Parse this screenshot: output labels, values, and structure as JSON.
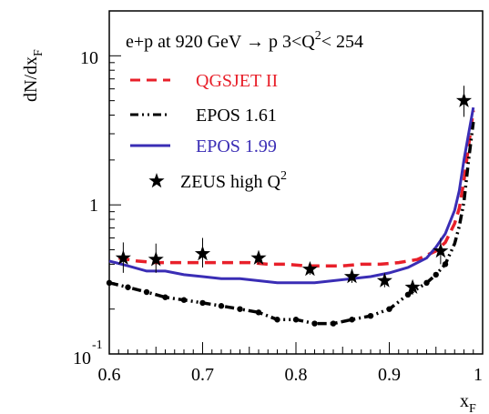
{
  "chart_data": {
    "type": "line",
    "title_main": "e+p at 920 GeV → p  3<Q",
    "title_sup1": "2",
    "title_end": "< 254",
    "xlabel_main": "x",
    "xlabel_sub": "F",
    "ylabel_main": "dN/dx",
    "ylabel_sub": "F",
    "x_range": [
      0.6,
      1.0
    ],
    "y_range": [
      0.1,
      20
    ],
    "y_scale": "log",
    "x_ticks": [
      "0.6",
      "0.7",
      "0.8",
      "0.9",
      "1"
    ],
    "y_ticks": {
      "ten": "10",
      "one": "1",
      "tenth_base": "10",
      "tenth_exp": "-1"
    },
    "legend_position": "top-left",
    "series": [
      {
        "name": "QGSJET II",
        "style": "dashed",
        "color": "#e8202a",
        "x": [
          0.61,
          0.63,
          0.65,
          0.67,
          0.69,
          0.71,
          0.73,
          0.75,
          0.77,
          0.79,
          0.81,
          0.83,
          0.85,
          0.87,
          0.89,
          0.91,
          0.93,
          0.95,
          0.96,
          0.97,
          0.975,
          0.98,
          0.985,
          0.99
        ],
        "y": [
          0.44,
          0.42,
          0.41,
          0.41,
          0.41,
          0.41,
          0.41,
          0.41,
          0.4,
          0.4,
          0.39,
          0.39,
          0.39,
          0.4,
          0.4,
          0.41,
          0.43,
          0.49,
          0.56,
          0.75,
          0.95,
          1.45,
          2.5,
          4.3
        ]
      },
      {
        "name": "EPOS 1.61",
        "style": "dash-dot-dot",
        "color": "#000000",
        "x": [
          0.6,
          0.62,
          0.64,
          0.66,
          0.68,
          0.7,
          0.72,
          0.74,
          0.76,
          0.78,
          0.8,
          0.82,
          0.84,
          0.86,
          0.88,
          0.9,
          0.92,
          0.94,
          0.95,
          0.96,
          0.97,
          0.975,
          0.98,
          0.985,
          0.99
        ],
        "y": [
          0.3,
          0.28,
          0.26,
          0.24,
          0.23,
          0.22,
          0.21,
          0.2,
          0.19,
          0.17,
          0.17,
          0.16,
          0.16,
          0.17,
          0.18,
          0.2,
          0.25,
          0.3,
          0.34,
          0.4,
          0.55,
          0.72,
          1.05,
          2.0,
          3.6
        ]
      },
      {
        "name": "EPOS 1.99",
        "style": "solid",
        "color": "#3a2db5",
        "x": [
          0.6,
          0.62,
          0.64,
          0.66,
          0.68,
          0.7,
          0.72,
          0.74,
          0.76,
          0.78,
          0.8,
          0.82,
          0.84,
          0.86,
          0.88,
          0.9,
          0.92,
          0.94,
          0.95,
          0.96,
          0.97,
          0.975,
          0.98,
          0.985,
          0.99
        ],
        "y": [
          0.42,
          0.39,
          0.36,
          0.36,
          0.34,
          0.33,
          0.32,
          0.32,
          0.31,
          0.3,
          0.3,
          0.3,
          0.31,
          0.32,
          0.33,
          0.35,
          0.38,
          0.44,
          0.52,
          0.64,
          0.92,
          1.25,
          2.0,
          3.0,
          4.5
        ]
      }
    ],
    "data_points": {
      "name_main": "ZEUS high Q",
      "name_sup": "2",
      "marker": "star",
      "x": [
        0.615,
        0.65,
        0.7,
        0.76,
        0.815,
        0.86,
        0.895,
        0.925,
        0.955,
        0.98
      ],
      "y": [
        0.44,
        0.43,
        0.47,
        0.44,
        0.37,
        0.33,
        0.31,
        0.28,
        0.49,
        5.0
      ],
      "err_low": [
        0.35,
        0.35,
        0.38,
        0.4,
        0.34,
        0.3,
        0.28,
        0.25,
        0.4,
        3.9
      ],
      "err_high": [
        0.56,
        0.55,
        0.6,
        0.49,
        0.41,
        0.37,
        0.34,
        0.31,
        0.6,
        6.3
      ]
    }
  }
}
